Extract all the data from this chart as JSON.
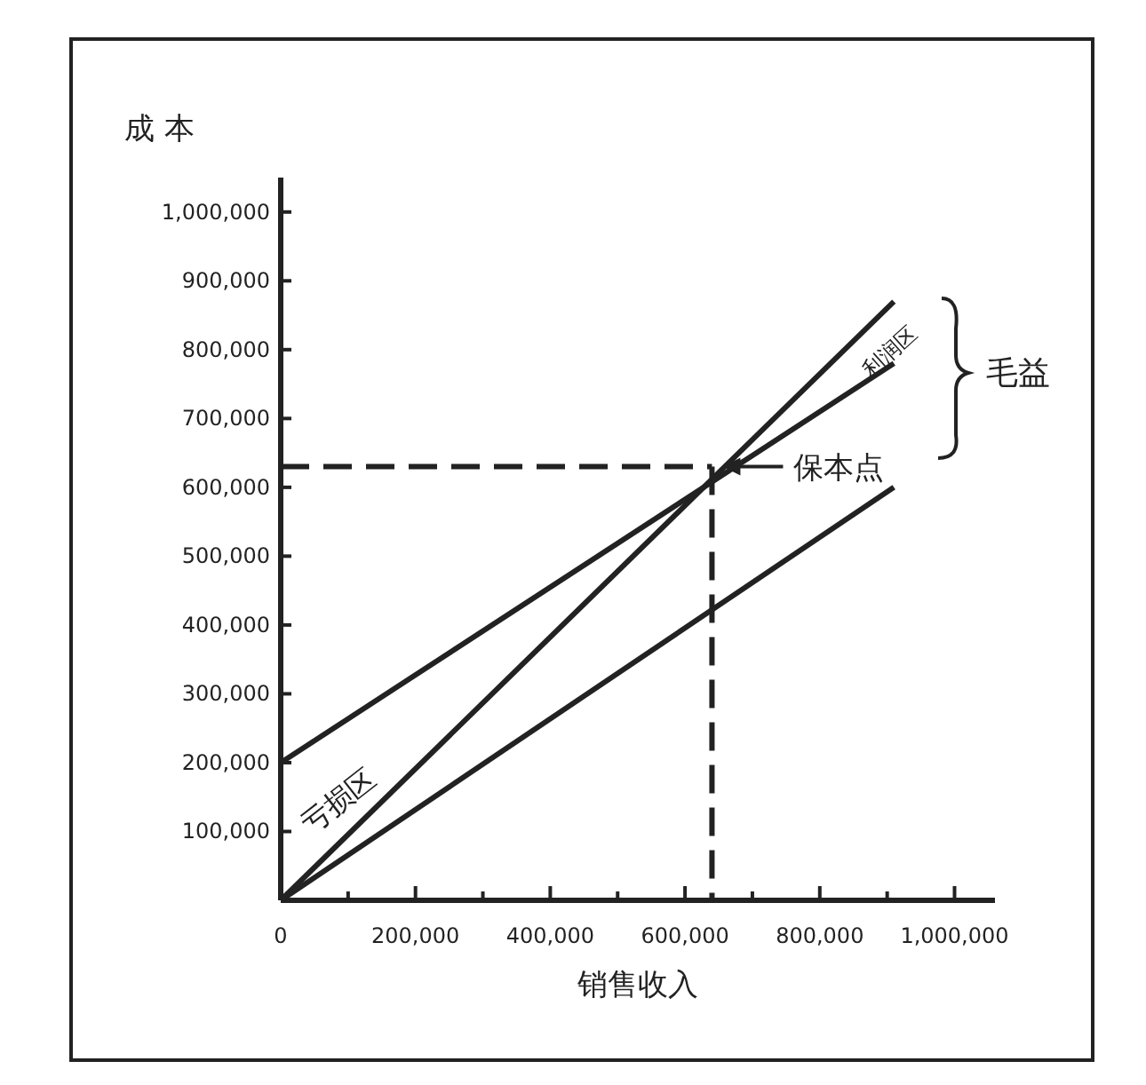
{
  "chart_data": {
    "type": "line",
    "xlabel": "销售收入",
    "ylabel": "成 本",
    "xlim": [
      0,
      1060000
    ],
    "ylim": [
      0,
      1050000
    ],
    "xticks": [
      0,
      {
        "value": 100000,
        "label": null
      },
      {
        "value": 200000,
        "label": "200,000"
      },
      {
        "value": 300000,
        "label": null
      },
      {
        "value": 400000,
        "label": "400,000"
      },
      {
        "value": 500000,
        "label": null
      },
      {
        "value": 600000,
        "label": "600,000"
      },
      {
        "value": 700000,
        "label": null
      },
      {
        "value": 800000,
        "label": "800,000"
      },
      {
        "value": 900000,
        "label": null
      },
      {
        "value": 1000000,
        "label": "1,000,000"
      }
    ],
    "yticks": [
      {
        "value": 100000,
        "label": "100,000"
      },
      {
        "value": 200000,
        "label": "200,000"
      },
      {
        "value": 300000,
        "label": "300,000"
      },
      {
        "value": 400000,
        "label": "400,000"
      },
      {
        "value": 500000,
        "label": "500,000"
      },
      {
        "value": 600000,
        "label": "600,000"
      },
      {
        "value": 700000,
        "label": "700,000"
      },
      {
        "value": 800000,
        "label": "800,000"
      },
      {
        "value": 900000,
        "label": "900,000"
      },
      {
        "value": 1000000,
        "label": "1,000,000"
      }
    ],
    "x": [
      0,
      910000
    ],
    "series": [
      {
        "color": "#222222",
        "values": [
          0,
          870000
        ]
      },
      {
        "color": "#222222",
        "values": [
          200000,
          780000
        ]
      },
      {
        "color": "#222222",
        "values": [
          0,
          600000
        ]
      }
    ],
    "ref_lines": [
      {
        "axis": "y",
        "value": 630000,
        "line_style": "dashed",
        "color": "#222222"
      },
      {
        "axis": "x",
        "value": 640000,
        "line_style": "dashed",
        "color": "#222222"
      }
    ],
    "annotations": [
      {
        "text": "保本点",
        "x": 640000,
        "y": 630000
      },
      "亏损区",
      "利润区",
      "毛益"
    ],
    "grid": false
  }
}
